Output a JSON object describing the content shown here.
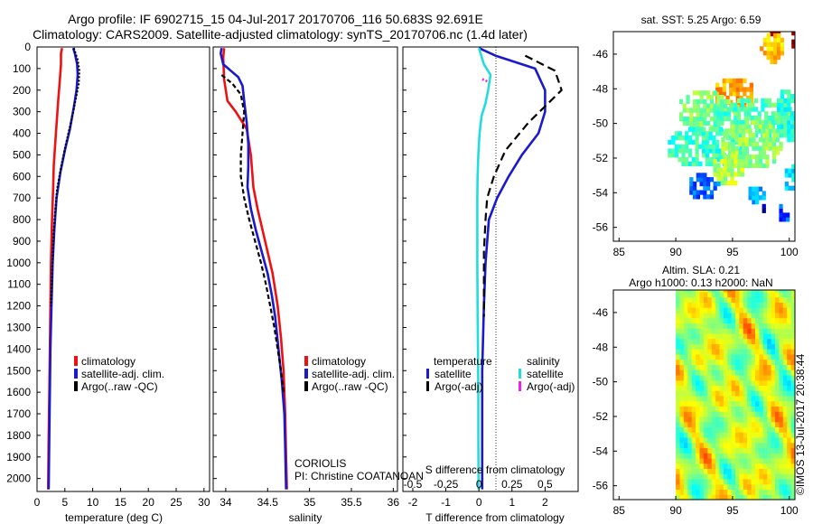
{
  "title": {
    "line1": "Argo profile: IF 6902715_15 04-Jul-2017 20170706_116 50.683S 92.691E",
    "line2": "Climatology: CARS2009. Satellite-adjusted climatology: synTS_20170706.nc (1.4d later)"
  },
  "colors": {
    "red": "#ee1111",
    "blue": "#1a1acc",
    "black": "#000000",
    "cyan": "#22dddd",
    "magenta": "#ee22ee"
  },
  "depth_ticks": [
    0,
    100,
    200,
    300,
    400,
    500,
    600,
    700,
    800,
    900,
    1000,
    1100,
    1200,
    1300,
    1400,
    1500,
    1600,
    1700,
    1800,
    1900,
    2000
  ],
  "legend1": {
    "items": [
      "climatology",
      "satellite-adj. clim.",
      "Argo(..raw -QC)"
    ]
  },
  "legend2": {
    "items": [
      "climatology",
      "satellite-adj. clim.",
      "Argo(..raw -QC)"
    ]
  },
  "legend3": {
    "temperature": "temperature",
    "salinity": "salinity",
    "satellite": "satellite",
    "argo": "Argo(-adj)"
  },
  "annotations": {
    "institution": "CORIOLIS",
    "pi": "PI: Christine COATANOAN",
    "footer": "©IMOS 13-Jul-2017 20:38:44"
  },
  "map1": {
    "title": "sat. SST: 5.25 Argo: 6.59"
  },
  "map2": {
    "title1": "Altim. SLA: 0.21",
    "title2": "Argo h1000: 0.13 h2000: NaN"
  },
  "chart_data": [
    {
      "type": "line",
      "title": "",
      "xlabel": "temperature (deg C)",
      "ylabel": "",
      "xlim": [
        0,
        31
      ],
      "ylim": [
        2060,
        0
      ],
      "xticks": [
        0,
        5,
        10,
        15,
        20,
        25,
        30
      ],
      "xtick_labels": [
        "0",
        "5",
        "10",
        "15",
        "20",
        "25",
        "30"
      ],
      "series": [
        {
          "name": "climatology",
          "color": "red",
          "dash": "",
          "points": [
            [
              4.5,
              5
            ],
            [
              4.3,
              30
            ],
            [
              4.3,
              80
            ],
            [
              4.1,
              150
            ],
            [
              3.8,
              250
            ],
            [
              3.4,
              400
            ],
            [
              3.0,
              550
            ],
            [
              2.9,
              650
            ],
            [
              2.7,
              800
            ],
            [
              2.5,
              1000
            ],
            [
              2.4,
              1200
            ],
            [
              2.3,
              1400
            ],
            [
              2.2,
              1600
            ],
            [
              2.1,
              1800
            ],
            [
              2.0,
              2050
            ]
          ]
        },
        {
          "name": "satellite-adj. clim.",
          "color": "blue",
          "dash": "",
          "points": [
            [
              6.5,
              5
            ],
            [
              6.8,
              30
            ],
            [
              7.2,
              80
            ],
            [
              7.3,
              130
            ],
            [
              7.1,
              200
            ],
            [
              6.6,
              280
            ],
            [
              5.9,
              380
            ],
            [
              5.0,
              480
            ],
            [
              4.2,
              580
            ],
            [
              3.5,
              700
            ],
            [
              3.1,
              850
            ],
            [
              2.8,
              1000
            ],
            [
              2.6,
              1200
            ],
            [
              2.4,
              1400
            ],
            [
              2.3,
              1600
            ],
            [
              2.2,
              1800
            ],
            [
              2.1,
              2050
            ]
          ]
        },
        {
          "name": "Argo(..raw -QC)",
          "color": "black",
          "dash": "2 2",
          "points": [
            [
              6.6,
              5
            ],
            [
              7.3,
              60
            ],
            [
              7.6,
              110
            ],
            [
              7.5,
              170
            ],
            [
              6.8,
              260
            ],
            [
              6.0,
              360
            ],
            [
              5.1,
              460
            ],
            [
              4.3,
              560
            ],
            [
              3.6,
              660
            ],
            [
              3.2,
              780
            ],
            [
              2.9,
              900
            ],
            [
              2.7,
              1050
            ],
            [
              2.5,
              1200
            ]
          ]
        }
      ]
    },
    {
      "type": "line",
      "title": "",
      "xlabel": "salinity",
      "ylabel": "",
      "xlim": [
        33.85,
        36.05
      ],
      "ylim": [
        2060,
        0
      ],
      "xticks": [
        34,
        34.5,
        35,
        35.5,
        36
      ],
      "xtick_labels": [
        "34",
        "34.5",
        "35",
        "35.5",
        "36"
      ],
      "series": [
        {
          "name": "climatology",
          "color": "red",
          "dash": "",
          "points": [
            [
              33.98,
              5
            ],
            [
              33.97,
              50
            ],
            [
              33.98,
              150
            ],
            [
              34.02,
              250
            ],
            [
              34.12,
              300
            ],
            [
              34.25,
              380
            ],
            [
              34.3,
              500
            ],
            [
              34.33,
              650
            ],
            [
              34.38,
              750
            ],
            [
              34.44,
              850
            ],
            [
              34.5,
              950
            ],
            [
              34.56,
              1050
            ],
            [
              34.62,
              1200
            ],
            [
              34.66,
              1350
            ],
            [
              34.69,
              1500
            ],
            [
              34.71,
              1700
            ],
            [
              34.72,
              1900
            ],
            [
              34.73,
              2050
            ]
          ]
        },
        {
          "name": "satellite-adj. clim.",
          "color": "blue",
          "dash": "",
          "points": [
            [
              33.95,
              5
            ],
            [
              33.94,
              30
            ],
            [
              33.97,
              80
            ],
            [
              34.06,
              110
            ],
            [
              34.15,
              140
            ],
            [
              34.2,
              180
            ],
            [
              34.22,
              250
            ],
            [
              34.25,
              350
            ],
            [
              34.27,
              450
            ],
            [
              34.27,
              550
            ],
            [
              34.26,
              650
            ],
            [
              34.3,
              750
            ],
            [
              34.36,
              850
            ],
            [
              34.43,
              950
            ],
            [
              34.5,
              1050
            ],
            [
              34.55,
              1150
            ],
            [
              34.59,
              1250
            ],
            [
              34.63,
              1400
            ],
            [
              34.67,
              1550
            ],
            [
              34.7,
              1700
            ],
            [
              34.71,
              1850
            ],
            [
              34.72,
              2050
            ]
          ]
        },
        {
          "name": "Argo(..raw -QC)",
          "color": "black",
          "dash": "5 3",
          "points": [
            [
              33.95,
              130
            ],
            [
              34.08,
              170
            ],
            [
              34.18,
              220
            ],
            [
              34.22,
              300
            ],
            [
              34.2,
              400
            ],
            [
              34.18,
              500
            ],
            [
              34.18,
              600
            ],
            [
              34.22,
              700
            ],
            [
              34.28,
              800
            ],
            [
              34.35,
              900
            ],
            [
              34.42,
              1000
            ],
            [
              34.48,
              1100
            ],
            [
              34.53,
              1200
            ],
            [
              34.58,
              1300
            ],
            [
              34.62,
              1400
            ],
            [
              34.66,
              1500
            ],
            [
              34.69,
              1600
            ]
          ]
        }
      ]
    },
    {
      "type": "line",
      "title": "",
      "xlabel": "T difference from climatology",
      "ylabel": "",
      "xlim": [
        -2.3,
        3.0
      ],
      "ylim": [
        2060,
        0
      ],
      "xticks": [
        -2,
        -1,
        0,
        1,
        2
      ],
      "xtick_labels": [
        "-2",
        "-1",
        "0",
        "1",
        "2"
      ],
      "top_axis": {
        "label": "S difference from climatology",
        "ticks": [
          -0.5,
          -0.25,
          0,
          0.25,
          0.5
        ],
        "tick_labels": [
          "-0.5",
          "-0.25",
          "0",
          "0.25",
          "0.5"
        ],
        "xlim": [
          -0.575,
          0.75
        ]
      },
      "series": [
        {
          "name": "temperature satellite",
          "color": "blue",
          "dash": "",
          "points": [
            [
              0.0,
              5
            ],
            [
              0.5,
              40
            ],
            [
              1.7,
              100
            ],
            [
              2.0,
              200
            ],
            [
              2.0,
              300
            ],
            [
              1.8,
              400
            ],
            [
              1.3,
              500
            ],
            [
              0.9,
              600
            ],
            [
              0.55,
              700
            ],
            [
              0.3,
              800
            ],
            [
              0.2,
              1000
            ],
            [
              0.15,
              1200
            ],
            [
              0.1,
              1500
            ],
            [
              0.1,
              1800
            ],
            [
              0.1,
              2050
            ]
          ]
        },
        {
          "name": "temperature Argo(-adj)",
          "color": "black",
          "dash": "9 5",
          "points": [
            [
              1.4,
              40
            ],
            [
              2.3,
              110
            ],
            [
              2.5,
              200
            ],
            [
              1.5,
              350
            ],
            [
              0.8,
              480
            ],
            [
              0.45,
              600
            ],
            [
              0.25,
              700
            ],
            [
              0.2,
              800
            ],
            [
              0.15,
              950
            ],
            [
              0.15,
              1050
            ],
            [
              0.15,
              1250
            ]
          ]
        },
        {
          "name": "salinity satellite",
          "color": "cyan",
          "dash": "",
          "points": [
            [
              0.0,
              5
            ],
            [
              0.15,
              80
            ],
            [
              0.35,
              130
            ],
            [
              0.28,
              200
            ],
            [
              0.2,
              260
            ],
            [
              0.08,
              320
            ],
            [
              0.02,
              400
            ],
            [
              -0.02,
              500
            ],
            [
              -0.04,
              600
            ],
            [
              -0.05,
              700
            ],
            [
              -0.05,
              850
            ],
            [
              -0.05,
              1000
            ],
            [
              -0.04,
              1200
            ],
            [
              -0.03,
              1400
            ],
            [
              -0.02,
              1600
            ],
            [
              -0.02,
              1800
            ],
            [
              -0.01,
              2050
            ]
          ]
        },
        {
          "name": "salinity Argo(-adj)",
          "color": "magenta",
          "dash": "2 2",
          "points": [
            [
              0.1,
              150
            ],
            [
              0.2,
              155
            ],
            [
              0.25,
              160
            ]
          ]
        }
      ]
    },
    {
      "type": "heatmap",
      "title": "sat. SST: 5.25 Argo: 6.59",
      "xlim": [
        84.5,
        100.5
      ],
      "ylim": [
        -56.8,
        -44.7
      ],
      "xticks": [
        85,
        90,
        95,
        100
      ],
      "xtick_labels": [
        "85",
        "90",
        "95",
        "100"
      ],
      "yticks": [
        -46,
        -48,
        -50,
        -52,
        -54,
        -56
      ],
      "ytick_labels": [
        "-46",
        "-48",
        "-50",
        "-52",
        "-54",
        "-56"
      ]
    },
    {
      "type": "heatmap",
      "title": "Altim. SLA: 0.21",
      "xlim": [
        84.5,
        100.5
      ],
      "ylim": [
        -56.8,
        -44.7
      ],
      "xticks": [
        85,
        90,
        95,
        100
      ],
      "xtick_labels": [
        "85",
        "90",
        "95",
        "100"
      ],
      "yticks": [
        -46,
        -48,
        -50,
        -52,
        -54,
        -56
      ],
      "ytick_labels": [
        "-46",
        "-48",
        "-50",
        "-52",
        "-54",
        "-56"
      ]
    }
  ]
}
